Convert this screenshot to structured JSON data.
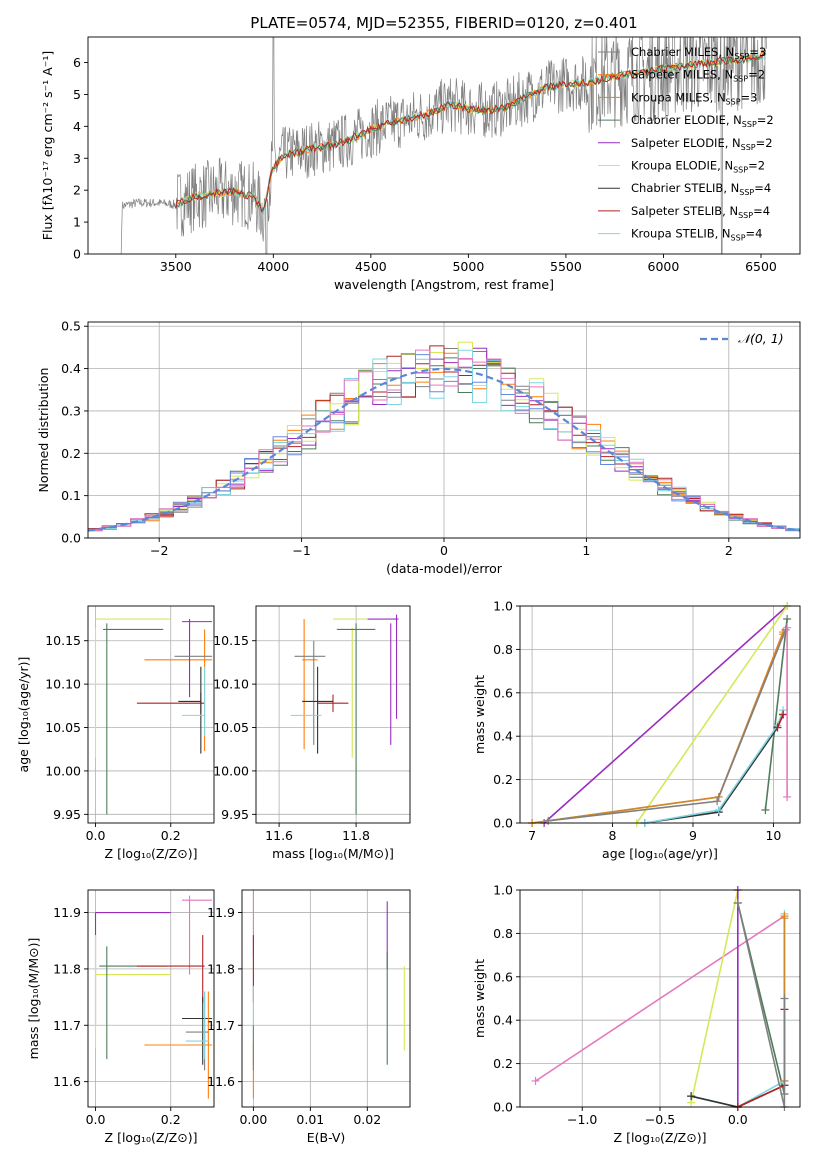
{
  "colors": {
    "CM": "#808080",
    "SM": "#ff7f0e",
    "KM": "#cc8a2a",
    "CE": "#4e7d5c",
    "SE": "#9a2cc0",
    "KE": "#d6e85a",
    "CS": "#333333",
    "SS": "#b22222",
    "KS": "#7fd6e0",
    "grey_spec": "#808080",
    "normal_curve": "#5a87d6",
    "hist_extra": [
      "#6688dd",
      "#e377c2"
    ]
  },
  "chart_data": [
    {
      "id": "spectrum",
      "type": "line",
      "title": "PLATE=0574, MJD=52355, FIBERID=0120, z=0.401",
      "xlabel": "wavelength [Angstrom, rest frame]",
      "ylabel": "Flux [fλ10⁻¹⁷ erg cm⁻² s⁻¹ A⁻¹]",
      "xlim": [
        3050,
        6700
      ],
      "ylim": [
        0,
        6.8
      ],
      "xticks": [
        "3500",
        "4000",
        "4500",
        "5000",
        "5500",
        "6000",
        "6500"
      ],
      "yticks": [
        "0",
        "1",
        "2",
        "3",
        "4",
        "5",
        "6"
      ],
      "legend": [
        {
          "label": "Chabrier MILES, N",
          "sub": "SSP",
          "n": "=3",
          "color": "CM"
        },
        {
          "label": "Salpeter MILES, N",
          "sub": "SSP",
          "n": "=2",
          "color": "SM"
        },
        {
          "label": "Kroupa MILES, N",
          "sub": "SSP",
          "n": "=3",
          "color": "KM"
        },
        {
          "label": "Chabrier ELODIE, N",
          "sub": "SSP",
          "n": "=2",
          "color": "CE"
        },
        {
          "label": "Salpeter ELODIE, N",
          "sub": "SSP",
          "n": "=2",
          "color": "SE"
        },
        {
          "label": "Kroupa ELODIE, N",
          "sub": "SSP",
          "n": "=2",
          "color": "KE"
        },
        {
          "label": "Chabrier STELIB, N",
          "sub": "SSP",
          "n": "=4",
          "color": "CS"
        },
        {
          "label": "Salpeter STELIB, N",
          "sub": "SSP",
          "n": "=4",
          "color": "SS"
        },
        {
          "label": "Kroupa STELIB, N",
          "sub": "SSP",
          "n": "=4",
          "color": "KS"
        }
      ],
      "continuum": [
        [
          3220,
          1.5
        ],
        [
          3300,
          1.6
        ],
        [
          3400,
          1.6
        ],
        [
          3500,
          1.55
        ],
        [
          3600,
          1.8
        ],
        [
          3700,
          1.9
        ],
        [
          3800,
          1.95
        ],
        [
          3900,
          1.8
        ],
        [
          3950,
          1.3
        ],
        [
          3990,
          2.6
        ],
        [
          4050,
          3.1
        ],
        [
          4200,
          3.3
        ],
        [
          4300,
          3.4
        ],
        [
          4400,
          3.6
        ],
        [
          4500,
          3.9
        ],
        [
          4600,
          4.1
        ],
        [
          4700,
          4.25
        ],
        [
          4800,
          4.4
        ],
        [
          4900,
          4.7
        ],
        [
          5000,
          4.55
        ],
        [
          5100,
          4.5
        ],
        [
          5200,
          4.6
        ],
        [
          5300,
          4.95
        ],
        [
          5400,
          5.2
        ],
        [
          5500,
          5.35
        ],
        [
          5600,
          5.35
        ],
        [
          5700,
          5.5
        ],
        [
          5800,
          5.6
        ],
        [
          5900,
          5.7
        ],
        [
          6000,
          5.8
        ],
        [
          6100,
          5.9
        ],
        [
          6200,
          5.95
        ],
        [
          6300,
          6.05
        ],
        [
          6400,
          6.1
        ],
        [
          6500,
          6.2
        ],
        [
          6530,
          6.3
        ]
      ]
    },
    {
      "id": "residuals",
      "type": "bar",
      "xlabel": "(data-model)/error",
      "ylabel": "Normed distribution",
      "xlim": [
        -2.5,
        2.5
      ],
      "ylim": [
        0,
        0.51
      ],
      "xticks": [
        "−2",
        "−1",
        "0",
        "1",
        "2"
      ],
      "yticks": [
        "0.0",
        "0.1",
        "0.2",
        "0.3",
        "0.4",
        "0.5"
      ],
      "legend": [
        {
          "label": "𝒩(0, 1)",
          "color": "normal_curve"
        }
      ],
      "bin_width": 0.1
    },
    {
      "id": "age_vs_Z",
      "type": "scatter",
      "xlabel": "Z [log₁₀(Z/Z⊙)]",
      "ylabel": "age  [log₁₀(age/yr)]",
      "xlim": [
        -0.02,
        0.315
      ],
      "ylim": [
        9.94,
        10.19
      ],
      "xticks": [
        0.0,
        0.2
      ],
      "xticklabels": [
        "0.0",
        "0.2"
      ],
      "yticks": [
        9.95,
        10.0,
        10.05,
        10.1,
        10.15
      ],
      "yticklabels": [
        "9.95",
        "10.00",
        "10.05",
        "10.10",
        "10.15"
      ],
      "points": [
        {
          "x": 0.0,
          "xe": 0.0,
          "y": 10.175,
          "ye": 0.0,
          "c": "KE"
        },
        {
          "x": 0.1,
          "xe": 0.1,
          "y": 10.175,
          "ye": 0.0,
          "c": "KE"
        },
        {
          "x": 0.0,
          "xe": 0.0,
          "y": 10.09,
          "ye": 0.075,
          "c": "KE"
        },
        {
          "x": 0.03,
          "xe": 0.0,
          "y": 10.06,
          "ye": 0.11,
          "c": "CE"
        },
        {
          "x": 0.1,
          "xe": 0.08,
          "y": 10.163,
          "ye": 0.0,
          "c": "CE"
        },
        {
          "x": 0.22,
          "xe": 0.09,
          "y": 10.128,
          "ye": 0.0,
          "c": "SM"
        },
        {
          "x": 0.29,
          "xe": 0.0,
          "y": 10.093,
          "ye": 0.07,
          "c": "SM"
        },
        {
          "x": 0.27,
          "xe": 0.04,
          "y": 10.172,
          "ye": 0.0,
          "c": "SE"
        },
        {
          "x": 0.25,
          "xe": 0.0,
          "y": 10.13,
          "ye": 0.045,
          "c": "SE"
        },
        {
          "x": 0.26,
          "xe": 0.05,
          "y": 10.132,
          "ye": 0.0,
          "c": "CM"
        },
        {
          "x": 0.2,
          "xe": 0.09,
          "y": 10.078,
          "ye": 0.0,
          "c": "SS"
        },
        {
          "x": 0.28,
          "xe": 0.0,
          "y": 10.078,
          "ye": 0.012,
          "c": "SS"
        },
        {
          "x": 0.28,
          "xe": 0.0,
          "y": 10.07,
          "ye": 0.05,
          "c": "CS"
        },
        {
          "x": 0.25,
          "xe": 0.03,
          "y": 10.08,
          "ye": 0.0,
          "c": "CS"
        },
        {
          "x": 0.26,
          "xe": 0.03,
          "y": 10.064,
          "ye": 0.0,
          "c": "KS"
        },
        {
          "x": 0.29,
          "xe": 0.0,
          "y": 10.08,
          "ye": 0.04,
          "c": "KS"
        }
      ]
    },
    {
      "id": "age_vs_mass",
      "type": "scatter",
      "xlabel": "mass [log₁₀(M/M⊙)]",
      "ylabel": "",
      "xlim": [
        11.54,
        11.94
      ],
      "ylim": [
        9.94,
        10.19
      ],
      "xticks": [
        11.6,
        11.8
      ],
      "xticklabels": [
        "11.6",
        "11.8"
      ],
      "yticks": [
        9.95,
        10.0,
        10.05,
        10.1,
        10.15
      ],
      "yticklabels": [
        "9.95",
        "10.00",
        "10.05",
        "10.10",
        "10.15"
      ],
      "points": [
        {
          "x": 11.79,
          "xe": 0.05,
          "y": 10.175,
          "ye": 0.0,
          "c": "KE"
        },
        {
          "x": 11.79,
          "xe": 0.0,
          "y": 10.09,
          "ye": 0.075,
          "c": "KE"
        },
        {
          "x": 11.8,
          "xe": 0.05,
          "y": 10.163,
          "ye": 0.0,
          "c": "CE"
        },
        {
          "x": 11.8,
          "xe": 0.0,
          "y": 10.06,
          "ye": 0.11,
          "c": "CE"
        },
        {
          "x": 11.87,
          "xe": 0.04,
          "y": 10.175,
          "ye": 0.0,
          "c": "SE"
        },
        {
          "x": 11.89,
          "xe": 0.0,
          "y": 10.1,
          "ye": 0.07,
          "c": "SE"
        },
        {
          "x": 11.905,
          "xe": 0.0,
          "y": 10.12,
          "ye": 0.06,
          "c": "SE"
        },
        {
          "x": 11.665,
          "xe": 0.0,
          "y": 10.1,
          "ye": 0.075,
          "c": "SM"
        },
        {
          "x": 11.68,
          "xe": 0.02,
          "y": 10.128,
          "ye": 0.0,
          "c": "SM"
        },
        {
          "x": 11.68,
          "xe": 0.04,
          "y": 10.132,
          "ye": 0.0,
          "c": "CM"
        },
        {
          "x": 11.69,
          "xe": 0.0,
          "y": 10.09,
          "ye": 0.06,
          "c": "CM"
        },
        {
          "x": 11.74,
          "xe": 0.04,
          "y": 10.078,
          "ye": 0.0,
          "c": "SS"
        },
        {
          "x": 11.74,
          "xe": 0.0,
          "y": 10.078,
          "ye": 0.01,
          "c": "SS"
        },
        {
          "x": 11.7,
          "xe": 0.04,
          "y": 10.08,
          "ye": 0.0,
          "c": "CS"
        },
        {
          "x": 11.7,
          "xe": 0.0,
          "y": 10.07,
          "ye": 0.05,
          "c": "CS"
        },
        {
          "x": 11.67,
          "xe": 0.04,
          "y": 10.064,
          "ye": 0.0,
          "c": "KS"
        }
      ]
    },
    {
      "id": "weight_vs_age",
      "type": "line",
      "xlabel": "age  [log₁₀(age/yr)]",
      "ylabel": "mass weight",
      "xlim": [
        6.85,
        10.33
      ],
      "ylim": [
        0,
        1.0
      ],
      "xticks": [
        7,
        8,
        9,
        10
      ],
      "xticklabels": [
        "7",
        "8",
        "9",
        "10"
      ],
      "yticks": [
        0,
        0.2,
        0.4,
        0.6,
        0.8,
        1.0
      ],
      "yticklabels": [
        "0.0",
        "0.2",
        "0.4",
        "0.6",
        "0.8",
        "1.0"
      ],
      "series": [
        {
          "c": "SE",
          "x": [
            7.15,
            10.17
          ],
          "y": [
            0.0,
            1.0
          ]
        },
        {
          "c": "KE",
          "x": [
            8.3,
            10.17
          ],
          "y": [
            0.0,
            1.0
          ]
        },
        {
          "c": "CE",
          "x": [
            9.9,
            10.17
          ],
          "y": [
            0.06,
            0.94
          ]
        },
        {
          "c": "SM",
          "x": [
            7.0,
            9.32,
            10.12
          ],
          "y": [
            0.0,
            0.12,
            0.88
          ]
        },
        {
          "c": "KM",
          "x": [
            7.0,
            9.32,
            10.12
          ],
          "y": [
            0.0,
            0.12,
            0.87
          ]
        },
        {
          "c": "CM",
          "x": [
            7.2,
            9.3,
            10.15
          ],
          "y": [
            0.01,
            0.1,
            0.89
          ]
        },
        {
          "c": "CS",
          "x": [
            8.4,
            9.32,
            10.05,
            10.12
          ],
          "y": [
            0.0,
            0.05,
            0.44,
            0.5
          ]
        },
        {
          "c": "KS",
          "x": [
            8.4,
            9.32,
            10.05,
            10.12
          ],
          "y": [
            0.0,
            0.06,
            0.45,
            0.52
          ]
        },
        {
          "c": "SS",
          "x": [
            10.05,
            10.12
          ],
          "y": [
            0.44,
            0.5
          ]
        },
        {
          "c": "hist_extra.1",
          "x": [
            10.17,
            10.17
          ],
          "y": [
            0.12,
            0.9
          ]
        }
      ]
    },
    {
      "id": "mass_vs_Z",
      "type": "scatter",
      "xlabel": "Z [log₁₀(Z/Z⊙)]",
      "ylabel": "mass [log₁₀(M/M⊙)]",
      "xlim": [
        -0.02,
        0.315
      ],
      "ylim": [
        11.555,
        11.94
      ],
      "xticks": [
        0.0,
        0.2
      ],
      "xticklabels": [
        "0.0",
        "0.2"
      ],
      "yticks": [
        11.6,
        11.7,
        11.8,
        11.9
      ],
      "yticklabels": [
        "11.6",
        "11.7",
        "11.8",
        "11.9"
      ],
      "points": [
        {
          "x": 0.0,
          "xe": 0.0,
          "y": 11.8,
          "ye": 0.1,
          "c": "SE"
        },
        {
          "x": 0.1,
          "xe": 0.1,
          "y": 11.9,
          "ye": 0.0,
          "c": "SE"
        },
        {
          "x": 0.0,
          "xe": 0.0,
          "y": 11.76,
          "ye": 0.1,
          "c": "KE"
        },
        {
          "x": 0.1,
          "xe": 0.1,
          "y": 11.79,
          "ye": 0.0,
          "c": "KE"
        },
        {
          "x": 0.03,
          "xe": 0.0,
          "y": 11.74,
          "ye": 0.1,
          "c": "CE"
        },
        {
          "x": 0.1,
          "xe": 0.09,
          "y": 11.805,
          "ye": 0.0,
          "c": "CE"
        },
        {
          "x": 0.27,
          "xe": 0.04,
          "y": 11.922,
          "ye": 0.0,
          "c": "hist_extra.1"
        },
        {
          "x": 0.25,
          "xe": 0.0,
          "y": 11.86,
          "ye": 0.07,
          "c": "hist_extra.1"
        },
        {
          "x": 0.2,
          "xe": 0.09,
          "y": 11.805,
          "ye": 0.0,
          "c": "SS"
        },
        {
          "x": 0.285,
          "xe": 0.0,
          "y": 11.8,
          "ye": 0.06,
          "c": "SS"
        },
        {
          "x": 0.27,
          "xe": 0.04,
          "y": 11.712,
          "ye": 0.0,
          "c": "CS"
        },
        {
          "x": 0.285,
          "xe": 0.0,
          "y": 11.69,
          "ye": 0.06,
          "c": "CS"
        },
        {
          "x": 0.27,
          "xe": 0.03,
          "y": 11.688,
          "ye": 0.0,
          "c": "CM"
        },
        {
          "x": 0.29,
          "xe": 0.0,
          "y": 11.69,
          "ye": 0.07,
          "c": "CM"
        },
        {
          "x": 0.22,
          "xe": 0.09,
          "y": 11.665,
          "ye": 0.0,
          "c": "SM"
        },
        {
          "x": 0.3,
          "xe": 0.0,
          "y": 11.665,
          "ye": 0.095,
          "c": "SM"
        },
        {
          "x": 0.27,
          "xe": 0.03,
          "y": 11.672,
          "ye": 0.0,
          "c": "KS"
        },
        {
          "x": 0.29,
          "xe": 0.0,
          "y": 11.7,
          "ye": 0.06,
          "c": "KS"
        }
      ]
    },
    {
      "id": "mass_vs_EBV",
      "type": "scatter",
      "xlabel": "E(B-V)",
      "ylabel": "",
      "xlim": [
        -0.002,
        0.0275
      ],
      "ylim": [
        11.555,
        11.94
      ],
      "xticks": [
        0.0,
        0.01,
        0.02
      ],
      "xticklabels": [
        "0.00",
        "0.01",
        "0.02"
      ],
      "yticks": [
        11.6,
        11.7,
        11.8,
        11.9
      ],
      "yticklabels": [
        "11.6",
        "11.7",
        "11.8",
        "11.9"
      ],
      "points": [
        {
          "x": 0.0,
          "xe": 0.0,
          "y": 11.88,
          "ye": 0.06,
          "c": "hist_extra.1"
        },
        {
          "x": 0.0,
          "xe": 0.0,
          "y": 11.8,
          "ye": 0.06,
          "c": "SS"
        },
        {
          "x": 0.0,
          "xe": 0.0,
          "y": 11.7,
          "ye": 0.07,
          "c": "KS"
        },
        {
          "x": 0.0,
          "xe": 0.0,
          "y": 11.62,
          "ye": 0.05,
          "c": "SM"
        },
        {
          "x": 0.0,
          "xe": 0.0,
          "y": 11.66,
          "ye": 0.04,
          "c": "CM"
        },
        {
          "x": 0.0235,
          "xe": 0.0,
          "y": 11.86,
          "ye": 0.06,
          "c": "SE"
        },
        {
          "x": 0.0235,
          "xe": 0.0,
          "y": 11.73,
          "ye": 0.1,
          "c": "CE"
        },
        {
          "x": 0.0265,
          "xe": 0.0,
          "y": 11.73,
          "ye": 0.075,
          "c": "KE"
        }
      ]
    },
    {
      "id": "weight_vs_Z",
      "type": "line",
      "xlabel": "Z [log₁₀(Z/Z⊙)]",
      "ylabel": "mass weight",
      "xlim": [
        -1.4,
        0.4
      ],
      "ylim": [
        0,
        1.0
      ],
      "xticks": [
        -1.0,
        -0.5,
        0.0
      ],
      "xticklabels": [
        "−1.0",
        "−0.5",
        "0.0"
      ],
      "yticks": [
        0,
        0.2,
        0.4,
        0.6,
        0.8,
        1.0
      ],
      "yticklabels": [
        "0.0",
        "0.2",
        "0.4",
        "0.6",
        "0.8",
        "1.0"
      ],
      "series": [
        {
          "c": "hist_extra.1",
          "x": [
            -1.3,
            0.3
          ],
          "y": [
            0.12,
            0.88
          ]
        },
        {
          "c": "KE",
          "x": [
            -0.3,
            0.0
          ],
          "y": [
            0.02,
            1.0
          ]
        },
        {
          "c": "CE",
          "x": [
            0.0,
            0.3
          ],
          "y": [
            0.94,
            0.06
          ]
        },
        {
          "c": "SE",
          "x": [
            0.0,
            0.0
          ],
          "y": [
            0.0,
            1.0
          ]
        },
        {
          "c": "KS",
          "x": [
            -0.3,
            0.0,
            0.3,
            0.3
          ],
          "y": [
            0.05,
            0.0,
            0.12,
            0.89
          ]
        },
        {
          "c": "CS",
          "x": [
            -0.3,
            0.0,
            0.3
          ],
          "y": [
            0.05,
            0.0,
            0.1
          ]
        },
        {
          "c": "SS",
          "x": [
            0.0,
            0.3,
            0.3
          ],
          "y": [
            0.0,
            0.1,
            0.45
          ]
        },
        {
          "c": "SM",
          "x": [
            0.3,
            0.3
          ],
          "y": [
            0.12,
            0.88
          ]
        },
        {
          "c": "KM",
          "x": [
            0.3,
            0.3
          ],
          "y": [
            0.12,
            0.87
          ]
        },
        {
          "c": "CM",
          "x": [
            0.0,
            0.3,
            0.3
          ],
          "y": [
            0.94,
            0.0,
            0.5
          ]
        }
      ]
    }
  ]
}
